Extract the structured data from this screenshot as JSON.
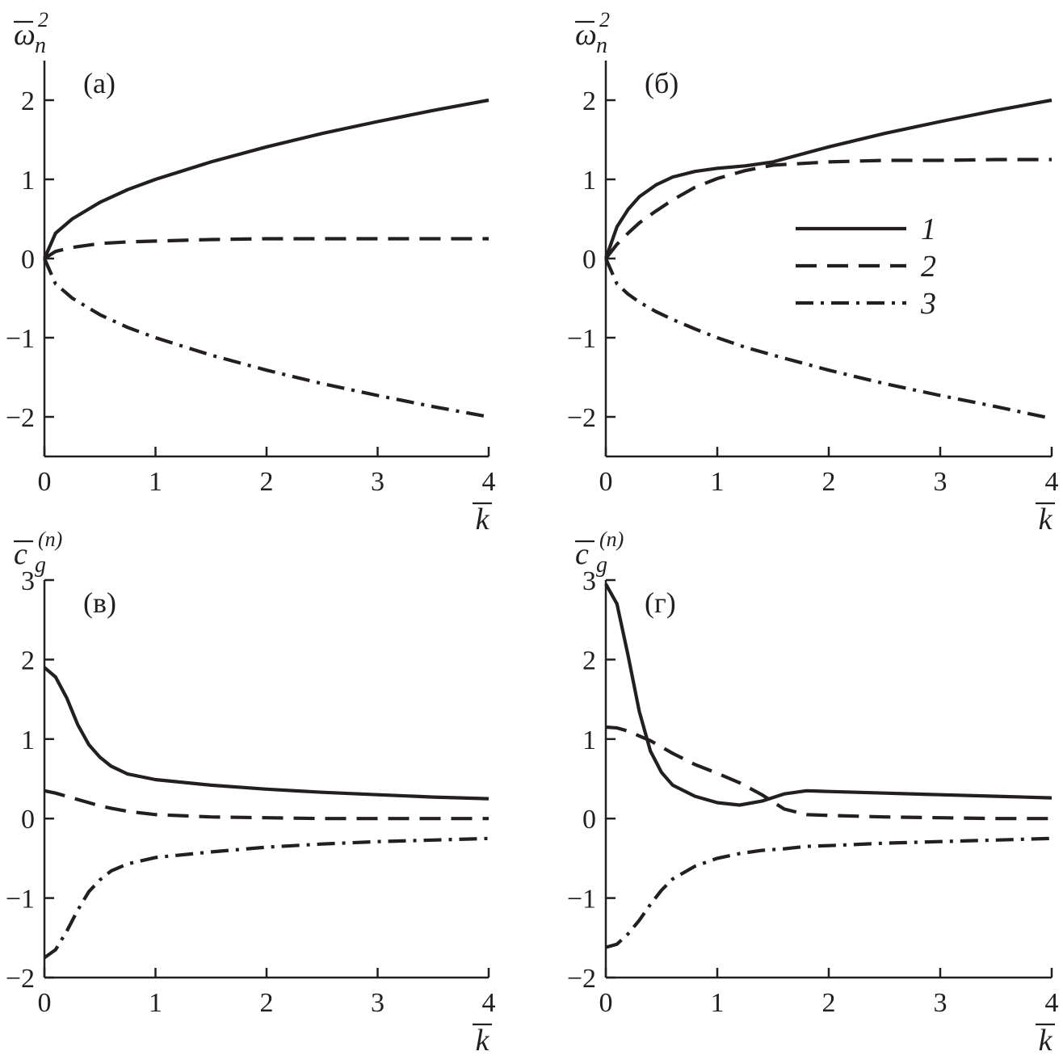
{
  "style": {
    "ink": "#231f20",
    "background": "#ffffff"
  },
  "series_styles": [
    {
      "id": "1",
      "dash": "solid"
    },
    {
      "id": "2",
      "dash": "dashed"
    },
    {
      "id": "3",
      "dash": "dash-dot"
    }
  ],
  "legend": {
    "placement": "inside panel (б), right of center",
    "labels": [
      "1",
      "2",
      "3"
    ]
  },
  "chart_data": [
    {
      "type": "line",
      "panel_label": "(а)",
      "ylabel_symbol": "ω",
      "ylabel_sub": "n",
      "ylabel_sup": "2",
      "xlabel": "k",
      "xlim": [
        0,
        4
      ],
      "ylim": [
        -2.5,
        2.5
      ],
      "xticks": [
        "0",
        "1",
        "2",
        "3",
        "4"
      ],
      "yticks": [
        "−2",
        "−1",
        "0",
        "1",
        "2"
      ],
      "ytick_values": [
        -2,
        -1,
        0,
        1,
        2
      ],
      "x": [
        0,
        0.1,
        0.25,
        0.5,
        0.75,
        1,
        1.5,
        2,
        2.5,
        3,
        3.5,
        4
      ],
      "series": [
        {
          "name": "1",
          "values": [
            0,
            0.32,
            0.5,
            0.71,
            0.87,
            1.0,
            1.22,
            1.41,
            1.58,
            1.73,
            1.87,
            2.0
          ]
        },
        {
          "name": "2",
          "values": [
            0,
            0.09,
            0.14,
            0.19,
            0.21,
            0.22,
            0.24,
            0.25,
            0.25,
            0.25,
            0.25,
            0.25
          ]
        },
        {
          "name": "3",
          "values": [
            0,
            -0.32,
            -0.5,
            -0.71,
            -0.87,
            -1.0,
            -1.22,
            -1.41,
            -1.58,
            -1.73,
            -1.87,
            -2.0
          ]
        }
      ]
    },
    {
      "type": "line",
      "panel_label": "(б)",
      "ylabel_symbol": "ω",
      "ylabel_sub": "n",
      "ylabel_sup": "2",
      "xlabel": "k",
      "xlim": [
        0,
        4
      ],
      "ylim": [
        -2.5,
        2.5
      ],
      "xticks": [
        "0",
        "1",
        "2",
        "3",
        "4"
      ],
      "yticks": [
        "−2",
        "−1",
        "0",
        "1",
        "2"
      ],
      "ytick_values": [
        -2,
        -1,
        0,
        1,
        2
      ],
      "x": [
        0,
        0.1,
        0.2,
        0.3,
        0.45,
        0.6,
        0.8,
        1,
        1.25,
        1.5,
        2,
        2.5,
        3,
        3.5,
        4
      ],
      "series": [
        {
          "name": "1",
          "values": [
            0,
            0.4,
            0.62,
            0.78,
            0.93,
            1.03,
            1.1,
            1.14,
            1.17,
            1.22,
            1.41,
            1.58,
            1.73,
            1.87,
            2.0
          ]
        },
        {
          "name": "2",
          "values": [
            0,
            0.18,
            0.32,
            0.45,
            0.6,
            0.74,
            0.9,
            1.01,
            1.11,
            1.18,
            1.22,
            1.24,
            1.24,
            1.25,
            1.25
          ]
        },
        {
          "name": "3",
          "values": [
            0,
            -0.32,
            -0.45,
            -0.55,
            -0.67,
            -0.77,
            -0.89,
            -1.0,
            -1.12,
            -1.22,
            -1.41,
            -1.58,
            -1.73,
            -1.87,
            -2.02
          ]
        }
      ]
    },
    {
      "type": "line",
      "panel_label": "(в)",
      "ylabel_symbol": "c",
      "ylabel_sub": "g",
      "ylabel_sup": "(n)",
      "xlabel": "k",
      "xlim": [
        0,
        4
      ],
      "ylim": [
        -2,
        3
      ],
      "xticks": [
        "0",
        "1",
        "2",
        "3",
        "4"
      ],
      "yticks": [
        "−2",
        "−1",
        "0",
        "1",
        "2",
        "3"
      ],
      "ytick_values": [
        -2,
        -1,
        0,
        1,
        2,
        3
      ],
      "x": [
        0,
        0.1,
        0.2,
        0.3,
        0.4,
        0.5,
        0.6,
        0.75,
        1,
        1.5,
        2,
        2.5,
        3,
        3.5,
        4
      ],
      "series": [
        {
          "name": "1",
          "values": [
            1.9,
            1.78,
            1.52,
            1.18,
            0.93,
            0.77,
            0.66,
            0.56,
            0.49,
            0.42,
            0.37,
            0.33,
            0.3,
            0.27,
            0.25
          ]
        },
        {
          "name": "2",
          "values": [
            0.35,
            0.32,
            0.28,
            0.24,
            0.2,
            0.16,
            0.13,
            0.09,
            0.05,
            0.02,
            0.01,
            0.0,
            0.0,
            0.0,
            0.0
          ]
        },
        {
          "name": "3",
          "values": [
            -1.75,
            -1.65,
            -1.42,
            -1.15,
            -0.92,
            -0.77,
            -0.66,
            -0.57,
            -0.49,
            -0.42,
            -0.36,
            -0.32,
            -0.29,
            -0.27,
            -0.25
          ]
        }
      ]
    },
    {
      "type": "line",
      "panel_label": "(г)",
      "ylabel_symbol": "c",
      "ylabel_sub": "g",
      "ylabel_sup": "(n)",
      "xlabel": "k",
      "xlim": [
        0,
        4
      ],
      "ylim": [
        -2,
        3
      ],
      "xticks": [
        "0",
        "1",
        "2",
        "3",
        "4"
      ],
      "yticks": [
        "−2",
        "−1",
        "0",
        "1",
        "2",
        "3"
      ],
      "ytick_values": [
        -2,
        -1,
        0,
        1,
        2,
        3
      ],
      "x": [
        0,
        0.1,
        0.2,
        0.3,
        0.4,
        0.5,
        0.6,
        0.8,
        1,
        1.2,
        1.4,
        1.6,
        1.8,
        2,
        2.5,
        3,
        3.5,
        4
      ],
      "series": [
        {
          "name": "1",
          "values": [
            2.95,
            2.7,
            2.05,
            1.35,
            0.85,
            0.58,
            0.42,
            0.28,
            0.2,
            0.17,
            0.22,
            0.31,
            0.35,
            0.34,
            0.32,
            0.3,
            0.28,
            0.26
          ]
        },
        {
          "name": "2",
          "values": [
            1.15,
            1.14,
            1.1,
            1.04,
            0.98,
            0.9,
            0.82,
            0.68,
            0.57,
            0.45,
            0.3,
            0.12,
            0.05,
            0.04,
            0.02,
            0.01,
            0.0,
            0.0
          ]
        },
        {
          "name": "3",
          "values": [
            -1.62,
            -1.58,
            -1.45,
            -1.28,
            -1.08,
            -0.9,
            -0.76,
            -0.6,
            -0.5,
            -0.44,
            -0.4,
            -0.38,
            -0.35,
            -0.34,
            -0.31,
            -0.29,
            -0.27,
            -0.25
          ]
        }
      ]
    }
  ]
}
